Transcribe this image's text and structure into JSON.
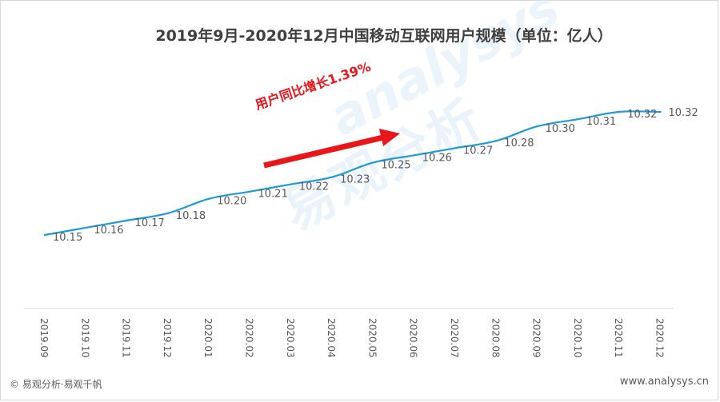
{
  "chart_data": {
    "type": "line",
    "title": "2019年9月-2020年12月中国移动互联网用户规模（单位：亿人）",
    "categories": [
      "2019.09",
      "2019.10",
      "2019.11",
      "2019.12",
      "2020.01",
      "2020.02",
      "2020.03",
      "2020.04",
      "2020.05",
      "2020.06",
      "2020.07",
      "2020.08",
      "2020.09",
      "2020.10",
      "2020.11",
      "2020.12"
    ],
    "series": [
      {
        "values": [
          10.15,
          10.16,
          10.17,
          10.18,
          10.2,
          10.21,
          10.22,
          10.23,
          10.25,
          10.26,
          10.27,
          10.28,
          10.3,
          10.31,
          10.32,
          10.32
        ]
      }
    ],
    "data_labels": [
      "10.15",
      "10.16",
      "10.17",
      "10.18",
      "10.20",
      "10.21",
      "10.22",
      "10.23",
      "10.25",
      "10.26",
      "10.27",
      "10.28",
      "10.30",
      "10.31",
      "10.32",
      "10.32"
    ],
    "annotation": "用户同比增长1.39%",
    "grid": false,
    "line_color": "#1f9ad6",
    "annotation_color": "#e8151b"
  },
  "footer": {
    "left": "© 易观分析·易观千帆",
    "right": "www.analysys.cn"
  },
  "watermark": {
    "cn": "易观分析",
    "en": "analysys"
  }
}
